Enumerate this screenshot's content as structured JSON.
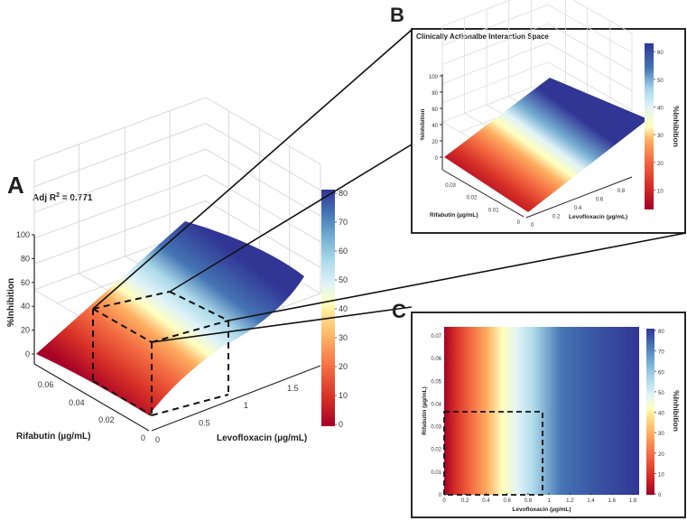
{
  "chart_data": [
    {
      "panel": "A",
      "type": "surface3d",
      "annotation": "Adj R² = 0.771",
      "annotation_main": "Adj R",
      "annotation_sup": "2",
      "annotation_tail": " = 0.771",
      "xlabel": "Levofloxacin (µg/mL)",
      "ylabel": "Rifabutin (µg/mL)",
      "zlabel": "%Inhibition",
      "x_ticks": [
        "0",
        "0.5",
        "1",
        "1.5"
      ],
      "y_ticks": [
        "0",
        "0.02",
        "0.04",
        "0.06"
      ],
      "z_ticks": [
        "0",
        "20",
        "40",
        "60",
        "80",
        "100"
      ],
      "xlim": [
        0,
        1.9
      ],
      "ylim": [
        0,
        0.075
      ],
      "zlim": [
        0,
        100
      ],
      "colorbar": {
        "ticks": [
          "0",
          "10",
          "20",
          "30",
          "40",
          "50",
          "60",
          "70",
          "80"
        ],
        "range": [
          0,
          80
        ]
      },
      "surface_corners": {
        "x0y0": 0,
        "x0ymax": 5,
        "xmaxy0": 75,
        "xmaxymax": 80
      },
      "highlight_box": {
        "x": [
          0,
          0.95
        ],
        "y": [
          0,
          0.038
        ],
        "z": [
          0,
          60
        ]
      }
    },
    {
      "panel": "B",
      "type": "surface3d",
      "title": "Clinically Actionalbe Interaction Space",
      "xlabel": "Levofloxacin (µg/mL)",
      "ylabel": "Rifabutin (µg/mL)",
      "zlabel": "%Inhibition",
      "colorbar_label": "%Inhibition",
      "x_ticks": [
        "0",
        "0.2",
        "0.4",
        "0.6",
        "0.8"
      ],
      "y_ticks": [
        "0",
        "0.01",
        "0.02",
        "0.03"
      ],
      "z_ticks": [
        "0",
        "20",
        "40",
        "60",
        "80",
        "100"
      ],
      "xlim": [
        0,
        0.95
      ],
      "ylim": [
        0,
        0.038
      ],
      "zlim": [
        0,
        100
      ],
      "colorbar": {
        "ticks": [
          "10",
          "20",
          "30",
          "40",
          "50",
          "60"
        ],
        "range": [
          3,
          63
        ]
      }
    },
    {
      "panel": "C",
      "type": "heatmap",
      "xlabel": "Levofloxacin (µg/mL)",
      "ylabel": "Rifabutin (µg/mL)",
      "colorbar_label": "%Inhibition",
      "x_ticks": [
        "0",
        "0.2",
        "0.4",
        "0.6",
        "0.8",
        "1",
        "1.2",
        "1.4",
        "1.6",
        "1.8"
      ],
      "y_ticks": [
        "0",
        "0.01",
        "0.02",
        "0.03",
        "0.04",
        "0.05",
        "0.06",
        "0.07"
      ],
      "xlim": [
        0,
        1.86
      ],
      "ylim": [
        0,
        0.074
      ],
      "colorbar": {
        "ticks": [
          "0",
          "10",
          "20",
          "30",
          "40",
          "50",
          "60",
          "70",
          "80"
        ],
        "range": [
          0,
          80
        ]
      },
      "highlight_box": {
        "x": [
          0,
          0.94
        ],
        "y": [
          0,
          0.038
        ]
      }
    }
  ],
  "labels": {
    "A": "A",
    "B": "B",
    "C": "C"
  },
  "colormap": [
    "#a50026",
    "#d73027",
    "#f46d43",
    "#fdae61",
    "#fee090",
    "#ffffbf",
    "#e0f3f8",
    "#abd9e9",
    "#74add1",
    "#4575b4",
    "#313695"
  ]
}
